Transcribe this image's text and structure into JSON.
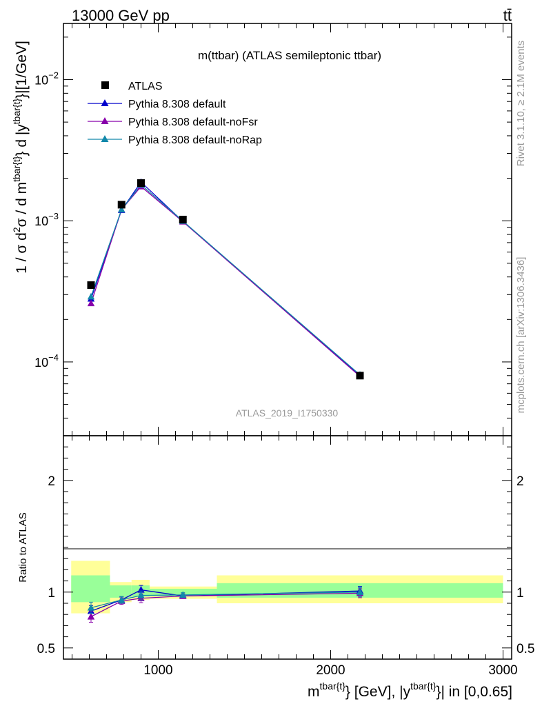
{
  "header": {
    "energy_label": "13000 GeV pp",
    "process_label": "tt̄"
  },
  "side_labels": {
    "rivet": "Rivet 3.1.10, ≥ 2.1M events",
    "mcplots": "mcplots.cern.ch [arXiv:1306.3436]"
  },
  "colors": {
    "atlas": "#000000",
    "default": "#0000cc",
    "noFsr": "#8800aa",
    "noRap": "#1188aa",
    "band_inner": "#99ff99",
    "band_outer": "#ffff99",
    "watermark": "#999999"
  },
  "chart_data": [
    {
      "type": "line",
      "title": "m(ttbar) (ATLAS semileptonic ttbar)",
      "ylabel_parts": {
        "a": "1 / σ d",
        "a_sup": "2",
        "b": "σ / d m",
        "b_sup": "tbar{t}",
        "c": "} d |y",
        "c_sup": "tbar{t}",
        "d": "}|[1/GeV]"
      },
      "yscale": "log",
      "ylim": [
        3e-05,
        0.025
      ],
      "xlim": [
        450,
        3050
      ],
      "y_tick_labels": [
        {
          "value": 0.0001,
          "base": "10",
          "exp": "−4"
        },
        {
          "value": 0.001,
          "base": "10",
          "exp": "−3"
        },
        {
          "value": 0.01,
          "base": "10",
          "exp": "−2"
        }
      ],
      "watermark": "ATLAS_2019_I1750330",
      "legend_position": "top-left",
      "series": [
        {
          "name": "ATLAS",
          "marker": "square",
          "color": "#000000",
          "x": [
            610,
            787,
            900,
            1143,
            2170
          ],
          "y": [
            0.00035,
            0.0013,
            0.00185,
            0.00102,
            8e-05
          ]
        },
        {
          "name": "Pythia 8.308 default",
          "marker": "triangle",
          "color": "#0000cc",
          "x": [
            610,
            787,
            900,
            1143,
            2170
          ],
          "y": [
            0.00028,
            0.00119,
            0.00188,
            0.00099,
            8e-05
          ]
        },
        {
          "name": "Pythia 8.308 default-noFsr",
          "marker": "triangle",
          "color": "#8800aa",
          "x": [
            610,
            787,
            900,
            1143,
            2170
          ],
          "y": [
            0.00026,
            0.0012,
            0.00175,
            0.000985,
            7.9e-05
          ]
        },
        {
          "name": "Pythia 8.308 default-noRap",
          "marker": "triangle",
          "color": "#1188aa",
          "x": [
            610,
            787,
            900,
            1143,
            2170
          ],
          "y": [
            0.00029,
            0.0012,
            0.0018,
            0.000995,
            8.1e-05
          ]
        }
      ]
    },
    {
      "type": "line",
      "ylabel": "Ratio to ATLAS",
      "ylim": [
        0.4,
        2.4
      ],
      "xlim": [
        450,
        3050
      ],
      "y_tick_labels": [
        {
          "value": 0.5,
          "label": "0.5"
        },
        {
          "value": 1,
          "label": "1"
        },
        {
          "value": 2,
          "label": "2"
        }
      ],
      "x_tick_labels": [
        {
          "value": 1000,
          "label": "1000"
        },
        {
          "value": 2000,
          "label": "2000"
        },
        {
          "value": 3000,
          "label": "3000"
        }
      ],
      "xlabel_parts": {
        "a": "m",
        "a_sup": "tbar{t}",
        "b": "} [GeV], |y",
        "b_sup": "tbar{t}",
        "c": "}| in [0,0.65]"
      },
      "bands": [
        {
          "x0": 495,
          "x1": 720,
          "inner": [
            0.91,
            1.15
          ],
          "outer": [
            0.81,
            1.28
          ]
        },
        {
          "x0": 720,
          "x1": 845,
          "inner": [
            0.95,
            1.06
          ],
          "outer": [
            0.91,
            1.09
          ]
        },
        {
          "x0": 845,
          "x1": 950,
          "inner": [
            0.96,
            1.06
          ],
          "outer": [
            0.93,
            1.11
          ]
        },
        {
          "x0": 950,
          "x1": 1340,
          "inner": [
            0.965,
            1.03
          ],
          "outer": [
            0.94,
            1.05
          ]
        },
        {
          "x0": 1340,
          "x1": 3000,
          "inner": [
            0.95,
            1.08
          ],
          "outer": [
            0.9,
            1.15
          ]
        }
      ],
      "series": [
        {
          "name": "Pythia 8.308 default",
          "marker": "triangle",
          "color": "#0000cc",
          "x": [
            610,
            787,
            900,
            1143,
            2170
          ],
          "y": [
            0.83,
            0.93,
            1.02,
            0.965,
            1.01
          ],
          "err": [
            0.05,
            0.03,
            0.04,
            0.02,
            0.04
          ]
        },
        {
          "name": "Pythia 8.308 default-noFsr",
          "marker": "triangle",
          "color": "#8800aa",
          "x": [
            610,
            787,
            900,
            1143,
            2170
          ],
          "y": [
            0.78,
            0.92,
            0.945,
            0.965,
            0.99
          ],
          "err": [
            0.05,
            0.03,
            0.04,
            0.02,
            0.04
          ]
        },
        {
          "name": "Pythia 8.308 default-noRap",
          "marker": "triangle",
          "color": "#1188aa",
          "x": [
            610,
            787,
            900,
            1143,
            2170
          ],
          "y": [
            0.86,
            0.93,
            0.97,
            0.975,
            1.0
          ],
          "err": [
            0.05,
            0.03,
            0.04,
            0.02,
            0.04
          ]
        }
      ]
    }
  ]
}
